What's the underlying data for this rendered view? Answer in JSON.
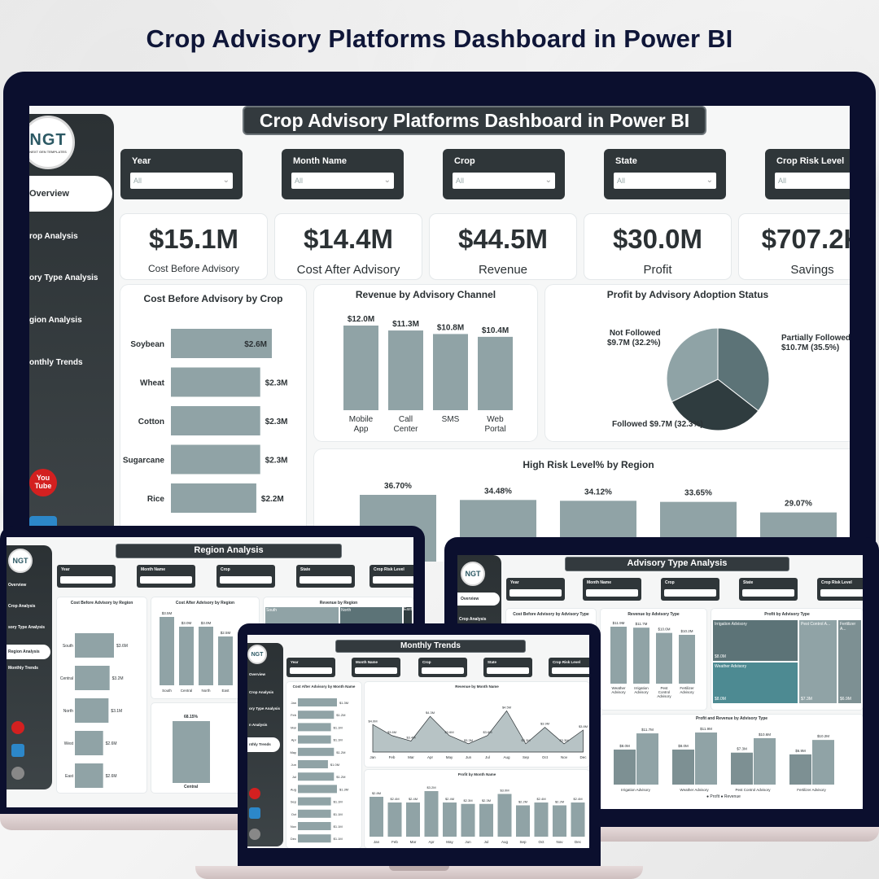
{
  "hero_title": "Crop Advisory Platforms Dashboard in Power BI",
  "colors": {
    "bar": "#90a3a6",
    "dark": "#2b3134",
    "frame": "#0b0f2e"
  },
  "main": {
    "title": "Crop Advisory Platforms Dashboard in Power BI",
    "logo": {
      "text": "NGT",
      "sub": "NEXT GEN TEMPLATES"
    },
    "nav": [
      "Overview",
      "rop Analysis",
      "ory Type Analysis",
      "gion Analysis",
      "onthly Trends"
    ],
    "slicers": [
      {
        "label": "Year",
        "value": "All"
      },
      {
        "label": "Month Name",
        "value": "All"
      },
      {
        "label": "Crop",
        "value": "All"
      },
      {
        "label": "State",
        "value": "All"
      },
      {
        "label": "Crop Risk Level",
        "value": "All"
      }
    ],
    "kpis": [
      {
        "value": "$15.1M",
        "label": "Cost Before Advisory"
      },
      {
        "value": "$14.4M",
        "label": "Cost After Advisory"
      },
      {
        "value": "$44.5M",
        "label": "Revenue"
      },
      {
        "value": "$30.0M",
        "label": "Profit"
      },
      {
        "value": "$707.2K",
        "label": "Savings"
      }
    ],
    "cost_by_crop": {
      "title": "Cost Before Advisory by Crop"
    },
    "revenue_by_channel": {
      "title": "Revenue by Advisory Channel"
    },
    "profit_by_status": {
      "title": "Profit by Advisory Adoption Status",
      "labels": [
        "Not Followed",
        "$9.7M (32.2%)",
        "Partially Followed",
        "$10.7M (35.5%)",
        "Followed $9.7M (32.3%)"
      ]
    },
    "risk_by_region": {
      "title": "High Risk Level% by Region"
    },
    "social": {
      "youtube": "You Tube"
    }
  },
  "chart_data": [
    {
      "type": "bar",
      "title": "Cost Before Advisory by Crop",
      "categories": [
        "Soybean",
        "Wheat",
        "Cotton",
        "Sugarcane",
        "Rice"
      ],
      "values": [
        2.6,
        2.3,
        2.3,
        2.3,
        2.2
      ],
      "data_labels": [
        "$2.6M",
        "$2.3M",
        "$2.3M",
        "$2.3M",
        "$2.2M"
      ],
      "orientation": "horizontal"
    },
    {
      "type": "bar",
      "title": "Revenue by Advisory Channel",
      "categories": [
        "Mobile App",
        "Call Center",
        "SMS",
        "Web Portal"
      ],
      "values": [
        12.0,
        11.3,
        10.8,
        10.4
      ],
      "data_labels": [
        "$12.0M",
        "$11.3M",
        "$10.8M",
        "$10.4M"
      ]
    },
    {
      "type": "pie",
      "title": "Profit by Advisory Adoption Status",
      "categories": [
        "Partially Followed",
        "Followed",
        "Not Followed"
      ],
      "values": [
        10.7,
        9.7,
        9.7
      ],
      "colors": [
        "#5c7377",
        "#2f3c3f",
        "#8fa3a6"
      ]
    },
    {
      "type": "bar",
      "title": "High Risk Level% by Region",
      "values": [
        36.7,
        34.48,
        34.12,
        33.65,
        29.07
      ],
      "data_labels": [
        "36.70%",
        "34.48%",
        "34.12%",
        "33.65%",
        "29.07%"
      ]
    },
    {
      "type": "bar",
      "title": "Cost Before Advisory by Region",
      "categories": [
        "South",
        "Central",
        "North",
        "West",
        "East"
      ],
      "values": [
        3.6,
        3.2,
        3.1,
        2.6,
        2.6
      ],
      "data_labels": [
        "$3.6M",
        "$3.2M",
        "$3.1M",
        "$2.6M",
        "$2.6M"
      ]
    },
    {
      "type": "bar",
      "title": "Cost After Advisory by Region",
      "categories": [
        "South",
        "Central",
        "North",
        "East"
      ],
      "values": [
        3.5,
        3.0,
        3.0,
        2.5
      ],
      "data_labels": [
        "$3.5M",
        "$3.0M",
        "$3.0M",
        "$2.5M"
      ]
    },
    {
      "type": "bar",
      "title": "Revenue by Advisory Type",
      "categories": [
        "Weather Advisory",
        "Irrigation Advisory",
        "Pest Control Advisory",
        "Fertilizer Advisory"
      ],
      "values": [
        11.9,
        11.7,
        10.6,
        10.2
      ],
      "data_labels": [
        "$11.9M",
        "$11.7M",
        "$10.6M",
        "$10.2M"
      ]
    },
    {
      "type": "bar",
      "title": "Profit and Revenue by Advisory Type",
      "categories": [
        "Irrigation Advisory",
        "Weather Advisory",
        "Pest Control Advisory",
        "Fertilizer Advisory"
      ],
      "series": [
        {
          "name": "Profit",
          "values": [
            8.0,
            8.0,
            7.3,
            6.9
          ]
        },
        {
          "name": "Revenue",
          "values": [
            11.7,
            11.9,
            10.6,
            10.2
          ]
        }
      ]
    },
    {
      "type": "bar",
      "title": "Cost After Advisory by Month Name",
      "categories": [
        "Jan",
        "Feb",
        "Mar",
        "Apr",
        "May",
        "Jun",
        "Jul",
        "Aug",
        "Sep",
        "Oct",
        "Nov",
        "Dec"
      ],
      "values": [
        1.3,
        1.2,
        1.1,
        1.1,
        1.2,
        1.0,
        1.2,
        1.3,
        1.1,
        1.1,
        1.1,
        1.1
      ]
    },
    {
      "type": "area",
      "title": "Revenue by Month Name",
      "categories": [
        "Jan",
        "Feb",
        "Mar",
        "Apr",
        "May",
        "Jun",
        "Jul",
        "Aug",
        "Sep",
        "Oct",
        "Nov",
        "Dec"
      ],
      "values": [
        4.0,
        3.6,
        3.4,
        4.3,
        3.6,
        3.3,
        3.6,
        4.5,
        3.3,
        3.9,
        3.3,
        3.8
      ]
    },
    {
      "type": "bar",
      "title": "Profit by Month Name",
      "categories": [
        "Jan",
        "Feb",
        "Mar",
        "Apr",
        "May",
        "Jun",
        "Jul",
        "Aug",
        "Sep",
        "Oct",
        "Nov",
        "Dec"
      ],
      "values": [
        2.8,
        2.4,
        2.4,
        3.2,
        2.4,
        2.3,
        2.3,
        3.0,
        2.2,
        2.4,
        2.2,
        2.4
      ]
    }
  ],
  "region_screen": {
    "title": "Region Analysis",
    "nav": [
      "Overview",
      "Crop Analysis",
      "sory Type Analysis",
      "Region Analysis",
      "Monthly Trends"
    ],
    "slicers": [
      "Year",
      "Month Name",
      "Crop",
      "State",
      "Crop Risk Level"
    ],
    "titles": [
      "Cost Before Advisory by Region",
      "Cost After Advisory by Region",
      "Revenue by Region"
    ],
    "treemap": [
      "South",
      "North",
      "East"
    ],
    "risk_values": [
      "68.15%",
      "Central"
    ]
  },
  "advisory_screen": {
    "title": "Advisory Type Analysis",
    "nav": [
      "Overview",
      "Crop Analysis"
    ],
    "slicers": [
      "Year",
      "Month Name",
      "Crop",
      "State",
      "Crop Risk Level"
    ],
    "titles": [
      "Cost Before Advisory by Advisory Type",
      "Revenue by Advisory Type",
      "Profit by Advisory Type",
      "Profit and Revenue by Advisory Type"
    ],
    "treemap": [
      {
        "label": "Irrigation Advisory",
        "value": "$8.0M"
      },
      {
        "label": "Pest Control A...",
        "value": "$7.3M"
      },
      {
        "label": "Fertilizer A...",
        "value": "$6.9M"
      },
      {
        "label": "Weather Advisory",
        "value": "$8.0M"
      }
    ],
    "legend": "● Profit ● Revenue"
  },
  "monthly_screen": {
    "title": "Monthly Trends",
    "nav": [
      "Overview",
      "Crop Analysis",
      "ory Type Analysis",
      "n Analysis",
      "nthly Trends"
    ],
    "slicers": [
      "Year",
      "Month Name",
      "Crop",
      "State",
      "Crop Risk Level"
    ],
    "titles": [
      "Cost After Advisory by Month Name",
      "Revenue by Month Name",
      "Profit by Month Name"
    ]
  }
}
